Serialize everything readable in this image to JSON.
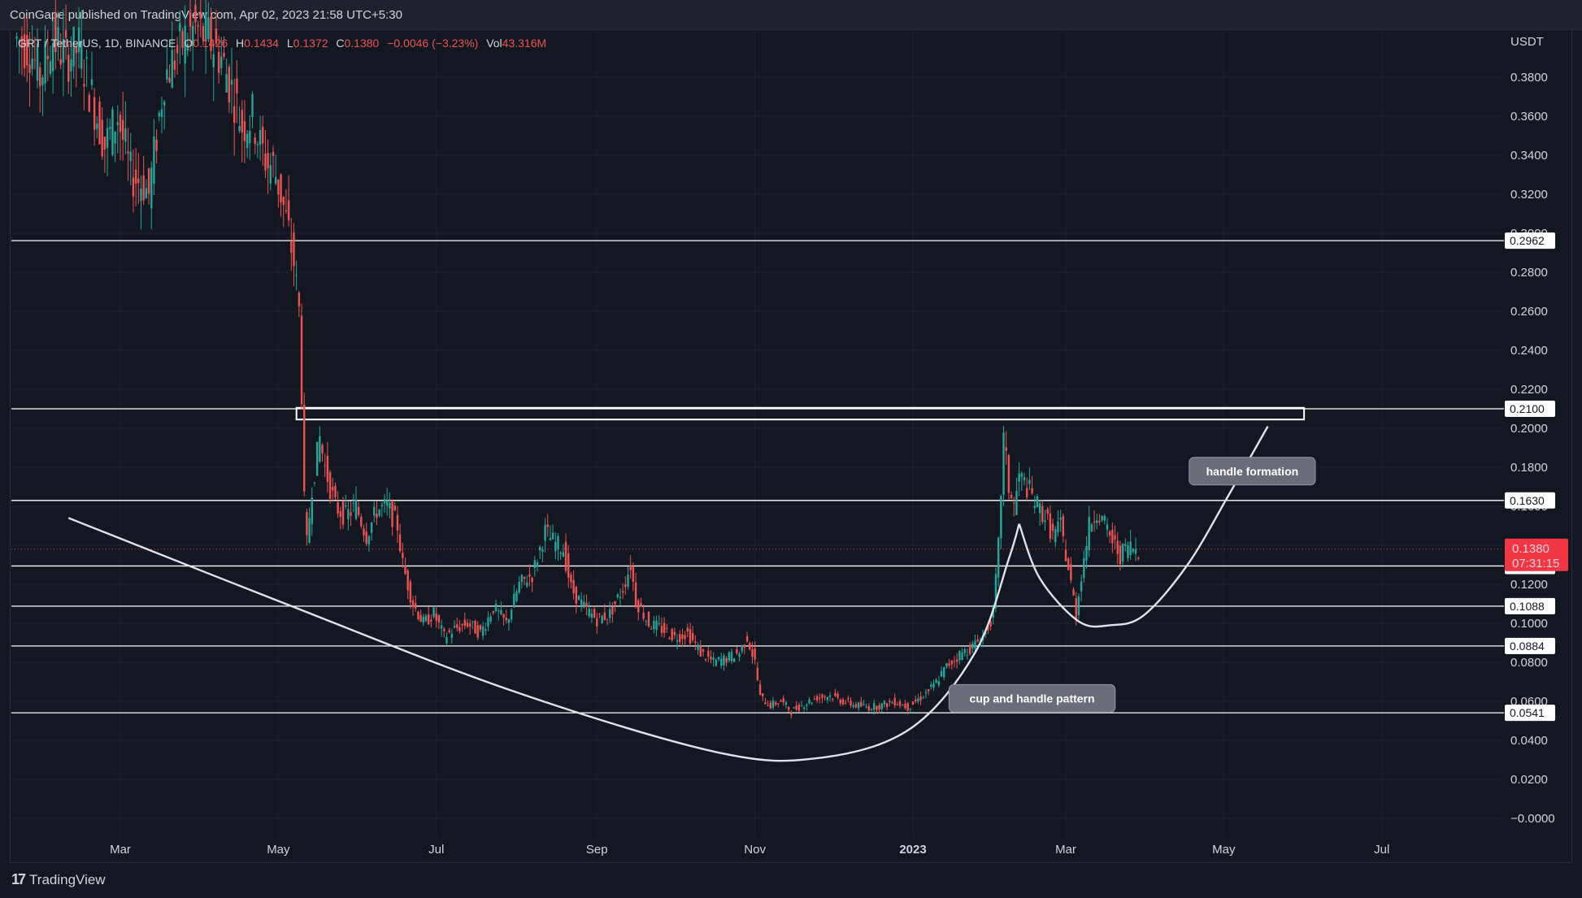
{
  "header": {
    "publisher_text": "CoinGape published on TradingView.com, Apr 02, 2023 21:58 UTC+5:30"
  },
  "footer": {
    "brand": "TradingView",
    "logo_glyph": "17"
  },
  "legend": {
    "symbol": "GRT / TetherUS, 1D, BINANCE",
    "open_label": "O",
    "open_value": "0.1426",
    "high_label": "H",
    "high_value": "0.1434",
    "low_label": "L",
    "low_value": "0.1372",
    "close_label": "C",
    "close_value": "0.1380",
    "change": "−0.0046 (−3.23%)",
    "vol_label": "Vol",
    "vol_value": "43.316M"
  },
  "colors": {
    "background": "#131722",
    "up": "#26a69a",
    "down": "#ef5350",
    "grid": "#1e222d",
    "line": "#ffffff",
    "price_tag": "#f23645",
    "annotation_bg": "#6a6d78"
  },
  "chart_data": {
    "type": "candlestick",
    "currency_label": "USDT",
    "ylim": [
      -0.008,
      0.408
    ],
    "y_ticks": [
      "0.3800",
      "0.3600",
      "0.3400",
      "0.3200",
      "0.3000",
      "0.2800",
      "0.2600",
      "0.2400",
      "0.2200",
      "0.2000",
      "0.1800",
      "0.1600",
      "0.1400",
      "0.1200",
      "0.1000",
      "0.0800",
      "0.0600",
      "0.0400",
      "0.0200",
      "−0.0000"
    ],
    "x_ticks": [
      {
        "label": "Mar",
        "day": 0
      },
      {
        "label": "May",
        "day": 61
      },
      {
        "label": "Jul",
        "day": 122
      },
      {
        "label": "Sep",
        "day": 184
      },
      {
        "label": "Nov",
        "day": 245
      },
      {
        "label": "2023",
        "day": 306
      },
      {
        "label": "Mar",
        "day": 365
      },
      {
        "label": "May",
        "day": 426
      },
      {
        "label": "Jul",
        "day": 487
      }
    ],
    "x_range_days": [
      -42,
      522
    ],
    "levels": [
      0.2962,
      0.21,
      0.163,
      0.1294,
      0.1088,
      0.0884,
      0.0541
    ],
    "level_labels": [
      "0.2962",
      "0.2100",
      "0.1630",
      "0.1294",
      "0.1088",
      "0.0884",
      "0.0541"
    ],
    "current_price": {
      "value": 0.138,
      "label": "0.1380",
      "countdown": "07:31:15"
    },
    "resistance_zone": {
      "day_start": 68,
      "day_end": 457,
      "low": 0.2045,
      "high": 0.2105
    },
    "price_path": [
      [
        -40,
        0.4
      ],
      [
        -34,
        0.395
      ],
      [
        -30,
        0.38
      ],
      [
        -25,
        0.4
      ],
      [
        -20,
        0.39
      ],
      [
        -15,
        0.395
      ],
      [
        -10,
        0.37
      ],
      [
        -5,
        0.345
      ],
      [
        0,
        0.36
      ],
      [
        5,
        0.33
      ],
      [
        10,
        0.325
      ],
      [
        12,
        0.32
      ],
      [
        15,
        0.35
      ],
      [
        18,
        0.38
      ],
      [
        22,
        0.39
      ],
      [
        26,
        0.4
      ],
      [
        30,
        0.405
      ],
      [
        35,
        0.4
      ],
      [
        40,
        0.39
      ],
      [
        45,
        0.37
      ],
      [
        48,
        0.355
      ],
      [
        52,
        0.36
      ],
      [
        55,
        0.345
      ],
      [
        58,
        0.335
      ],
      [
        60,
        0.335
      ],
      [
        63,
        0.32
      ],
      [
        66,
        0.3
      ],
      [
        68,
        0.285
      ],
      [
        70,
        0.26
      ],
      [
        71,
        0.22
      ],
      [
        72,
        0.16
      ],
      [
        73,
        0.14
      ],
      [
        75,
        0.17
      ],
      [
        78,
        0.195
      ],
      [
        80,
        0.18
      ],
      [
        84,
        0.16
      ],
      [
        88,
        0.155
      ],
      [
        92,
        0.16
      ],
      [
        96,
        0.145
      ],
      [
        100,
        0.158
      ],
      [
        104,
        0.16
      ],
      [
        108,
        0.15
      ],
      [
        110,
        0.13
      ],
      [
        114,
        0.11
      ],
      [
        118,
        0.1
      ],
      [
        122,
        0.105
      ],
      [
        126,
        0.093
      ],
      [
        130,
        0.097
      ],
      [
        135,
        0.1
      ],
      [
        140,
        0.095
      ],
      [
        145,
        0.108
      ],
      [
        150,
        0.1
      ],
      [
        155,
        0.12
      ],
      [
        160,
        0.125
      ],
      [
        165,
        0.147
      ],
      [
        168,
        0.142
      ],
      [
        172,
        0.138
      ],
      [
        175,
        0.118
      ],
      [
        180,
        0.108
      ],
      [
        185,
        0.102
      ],
      [
        190,
        0.105
      ],
      [
        195,
        0.118
      ],
      [
        198,
        0.13
      ],
      [
        200,
        0.112
      ],
      [
        205,
        0.1
      ],
      [
        210,
        0.097
      ],
      [
        215,
        0.093
      ],
      [
        220,
        0.095
      ],
      [
        225,
        0.085
      ],
      [
        230,
        0.08
      ],
      [
        235,
        0.082
      ],
      [
        240,
        0.085
      ],
      [
        243,
        0.093
      ],
      [
        246,
        0.08
      ],
      [
        248,
        0.062
      ],
      [
        252,
        0.058
      ],
      [
        256,
        0.06
      ],
      [
        260,
        0.055
      ],
      [
        264,
        0.058
      ],
      [
        270,
        0.062
      ],
      [
        275,
        0.063
      ],
      [
        280,
        0.06
      ],
      [
        285,
        0.058
      ],
      [
        290,
        0.057
      ],
      [
        295,
        0.058
      ],
      [
        300,
        0.06
      ],
      [
        305,
        0.057
      ],
      [
        310,
        0.062
      ],
      [
        315,
        0.068
      ],
      [
        320,
        0.078
      ],
      [
        325,
        0.084
      ],
      [
        330,
        0.088
      ],
      [
        335,
        0.095
      ],
      [
        338,
        0.105
      ],
      [
        340,
        0.14
      ],
      [
        342,
        0.195
      ],
      [
        344,
        0.17
      ],
      [
        346,
        0.16
      ],
      [
        348,
        0.175
      ],
      [
        351,
        0.17
      ],
      [
        355,
        0.16
      ],
      [
        358,
        0.155
      ],
      [
        361,
        0.145
      ],
      [
        364,
        0.15
      ],
      [
        366,
        0.135
      ],
      [
        368,
        0.12
      ],
      [
        370,
        0.105
      ],
      [
        372,
        0.125
      ],
      [
        375,
        0.15
      ],
      [
        378,
        0.158
      ],
      [
        381,
        0.15
      ],
      [
        384,
        0.142
      ],
      [
        387,
        0.135
      ],
      [
        390,
        0.14
      ],
      [
        393,
        0.138
      ]
    ],
    "curves": [
      {
        "name": "cup",
        "points": [
          [
            -20,
            0.154
          ],
          [
            60,
            0.112
          ],
          [
            150,
            0.066
          ],
          [
            230,
            0.034
          ],
          [
            270,
            0.031
          ],
          [
            305,
            0.046
          ],
          [
            330,
            0.085
          ],
          [
            343,
            0.133
          ],
          [
            347,
            0.151
          ]
        ]
      },
      {
        "name": "handle",
        "points": [
          [
            347,
            0.151
          ],
          [
            355,
            0.123
          ],
          [
            370,
            0.101
          ],
          [
            382,
            0.099
          ],
          [
            395,
            0.104
          ],
          [
            412,
            0.13
          ],
          [
            428,
            0.166
          ],
          [
            443,
            0.201
          ]
        ]
      }
    ],
    "annotations": [
      {
        "text": "handle formation",
        "day": 437,
        "price": 0.178
      },
      {
        "text": "cup and handle pattern",
        "day": 352,
        "price": 0.0615
      }
    ]
  }
}
